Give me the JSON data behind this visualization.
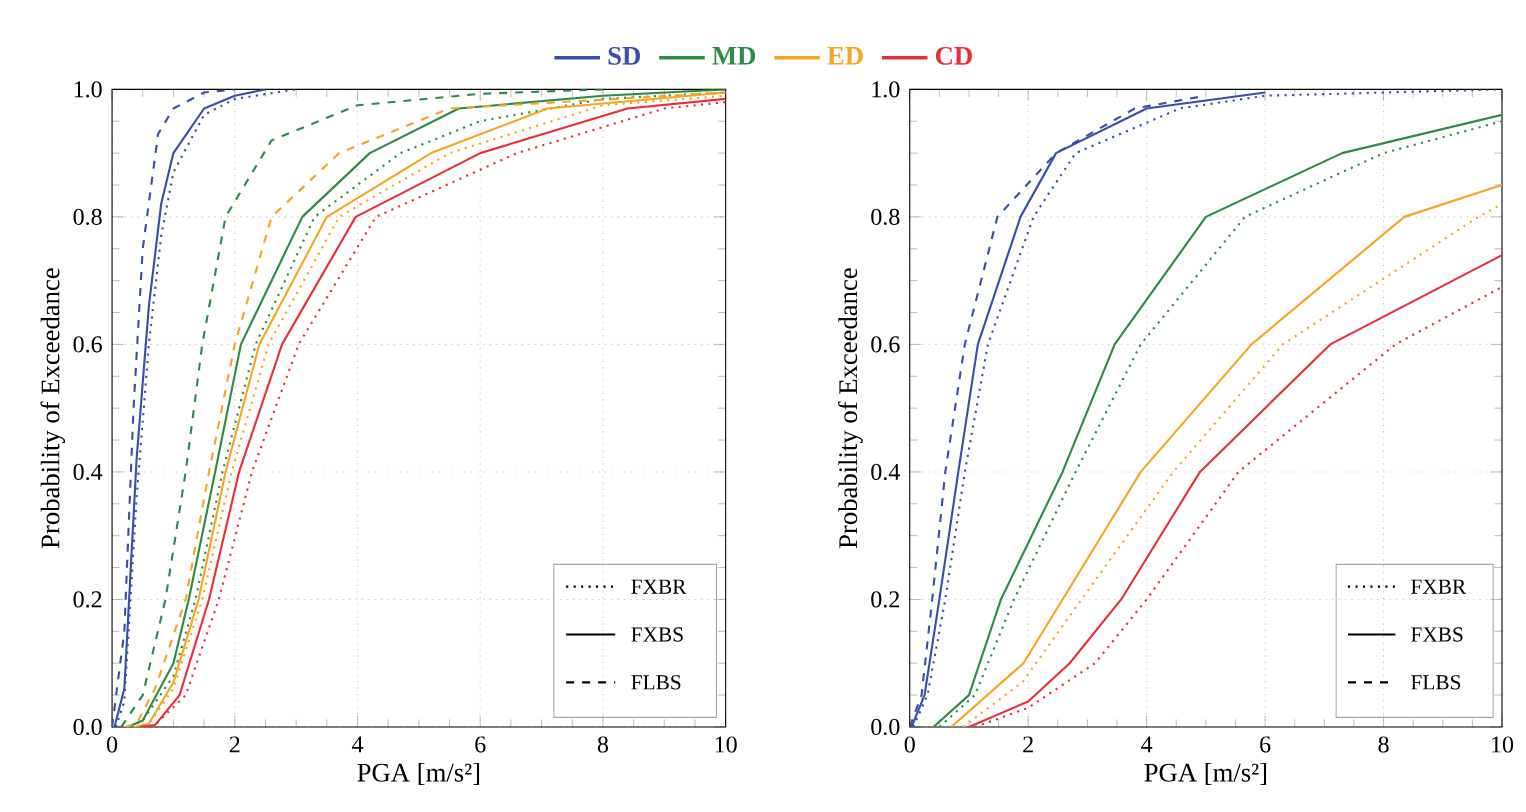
{
  "chart_data": [
    {
      "type": "line",
      "xlabel": "PGA [m/s²]",
      "ylabel": "Probability of Exceedance",
      "xlim": [
        0,
        10
      ],
      "ylim": [
        0,
        1
      ],
      "xticks": [
        0,
        2,
        4,
        6,
        8,
        10
      ],
      "yticks": [
        {
          "value": 0,
          "label": "0.0"
        },
        {
          "value": 0.2,
          "label": "0.2"
        },
        {
          "value": 0.4,
          "label": "0.4"
        },
        {
          "value": 0.6,
          "label": "0.6"
        },
        {
          "value": 0.8,
          "label": "0.8"
        },
        {
          "value": 1,
          "label": "1.0"
        }
      ],
      "grid": true,
      "legend": "top",
      "annotations": [
        "FXBR",
        "FXBS",
        "FLBS"
      ],
      "series": [
        {
          "color": "#3a4fa8",
          "line_style": "dotted",
          "x": [
            0.06,
            0.2,
            0.4,
            0.6,
            0.8,
            1,
            1.5,
            2,
            3
          ],
          "values": [
            0,
            0.04,
            0.36,
            0.6,
            0.77,
            0.87,
            0.96,
            0.985,
            1
          ]
        },
        {
          "name": "SD",
          "color": "#3a4fa8",
          "line_style": "solid",
          "x": [
            0.04,
            0.2,
            0.4,
            0.6,
            0.8,
            1,
            1.5,
            2,
            2.5
          ],
          "values": [
            0,
            0.06,
            0.42,
            0.66,
            0.82,
            0.9,
            0.97,
            0.99,
            1
          ]
        },
        {
          "color": "#3a4fa8",
          "line_style": "dashed",
          "x": [
            0,
            0.2,
            0.35,
            0.5,
            0.75,
            1,
            1.5,
            2
          ],
          "values": [
            0,
            0.15,
            0.5,
            0.75,
            0.93,
            0.97,
            0.995,
            1
          ]
        },
        {
          "color": "#2e8b4a",
          "line_style": "dotted",
          "x": [
            0.3,
            0.5,
            1,
            1.36,
            1.8,
            2.34,
            3.3,
            4.7,
            6,
            8,
            10
          ],
          "values": [
            0,
            0.01,
            0.08,
            0.2,
            0.4,
            0.6,
            0.8,
            0.9,
            0.95,
            0.985,
            0.995
          ]
        },
        {
          "name": "MD",
          "color": "#2e8b4a",
          "line_style": "solid",
          "x": [
            0.25,
            0.5,
            1,
            1.25,
            1.68,
            2.1,
            3.1,
            4.2,
            5.65,
            8,
            10
          ],
          "values": [
            0,
            0.01,
            0.1,
            0.2,
            0.4,
            0.6,
            0.8,
            0.9,
            0.97,
            0.99,
            1
          ]
        },
        {
          "color": "#2e8b4a",
          "line_style": "dashed",
          "x": [
            0.15,
            0.5,
            0.87,
            1.2,
            1.47,
            1.85,
            2.6,
            4,
            6,
            8
          ],
          "values": [
            0,
            0.05,
            0.2,
            0.4,
            0.6,
            0.8,
            0.92,
            0.975,
            0.993,
            1
          ]
        },
        {
          "color": "#f5a623",
          "line_style": "dotted",
          "x": [
            0.4,
            0.6,
            1,
            1.47,
            1.95,
            2.55,
            3.7,
            5.5,
            8,
            10
          ],
          "values": [
            0,
            0.005,
            0.06,
            0.2,
            0.4,
            0.6,
            0.8,
            0.9,
            0.975,
            0.99
          ]
        },
        {
          "name": "ED",
          "color": "#f5a623",
          "line_style": "solid",
          "x": [
            0.35,
            0.6,
            1,
            1.41,
            1.85,
            2.4,
            3.5,
            5.2,
            7.1,
            10
          ],
          "values": [
            0,
            0.005,
            0.07,
            0.2,
            0.4,
            0.6,
            0.8,
            0.9,
            0.97,
            0.995
          ]
        },
        {
          "color": "#f5a623",
          "line_style": "dashed",
          "x": [
            0.2,
            0.4,
            0.7,
            1.2,
            1.58,
            2,
            2.6,
            3.7,
            5.5,
            10
          ],
          "values": [
            0,
            0.005,
            0.06,
            0.2,
            0.4,
            0.6,
            0.8,
            0.9,
            0.97,
            0.995
          ]
        },
        {
          "color": "#e8303a",
          "line_style": "dotted",
          "x": [
            0.5,
            0.7,
            1.2,
            1.74,
            2.28,
            3.04,
            4.3,
            6.6,
            9,
            10
          ],
          "values": [
            0,
            0.003,
            0.05,
            0.2,
            0.4,
            0.6,
            0.8,
            0.9,
            0.97,
            0.98
          ]
        },
        {
          "name": "CD",
          "color": "#e8303a",
          "line_style": "solid",
          "x": [
            0.45,
            0.7,
            1.1,
            1.58,
            2.07,
            2.77,
            3.97,
            6,
            8.4,
            10
          ],
          "values": [
            0,
            0.003,
            0.05,
            0.2,
            0.4,
            0.6,
            0.8,
            0.9,
            0.97,
            0.985
          ]
        }
      ]
    },
    {
      "type": "line",
      "xlabel": "PGA [m/s²]",
      "ylabel": "Probability of Exceedance",
      "xlim": [
        0,
        10
      ],
      "ylim": [
        0,
        1
      ],
      "xticks": [
        0,
        2,
        4,
        6,
        8,
        10
      ],
      "yticks": [
        {
          "value": 0,
          "label": "0.0"
        },
        {
          "value": 0.2,
          "label": "0.2"
        },
        {
          "value": 0.4,
          "label": "0.4"
        },
        {
          "value": 0.6,
          "label": "0.6"
        },
        {
          "value": 0.8,
          "label": "0.8"
        },
        {
          "value": 1,
          "label": "1.0"
        }
      ],
      "grid": true,
      "annotations": [
        "FXBR",
        "FXBS",
        "FLBS"
      ],
      "series": [
        {
          "color": "#3a4fa8",
          "line_style": "dotted",
          "x": [
            0.06,
            0.3,
            0.6,
            0.93,
            1.32,
            2.09,
            2.8,
            4.56,
            6,
            10
          ],
          "values": [
            0,
            0.05,
            0.2,
            0.4,
            0.6,
            0.8,
            0.9,
            0.97,
            0.99,
            1
          ]
        },
        {
          "color": "#3a4fa8",
          "line_style": "solid",
          "x": [
            0.03,
            0.25,
            0.5,
            0.82,
            1.15,
            1.87,
            2.47,
            4,
            6
          ],
          "values": [
            0,
            0.05,
            0.2,
            0.4,
            0.6,
            0.8,
            0.9,
            0.97,
            0.995
          ]
        },
        {
          "color": "#3a4fa8",
          "line_style": "dashed",
          "x": [
            0,
            0.2,
            0.38,
            0.6,
            0.93,
            1.48,
            2.47,
            3.8,
            5
          ],
          "values": [
            0,
            0.05,
            0.2,
            0.4,
            0.6,
            0.8,
            0.9,
            0.97,
            0.99
          ]
        },
        {
          "color": "#2e8b4a",
          "line_style": "dotted",
          "x": [
            0.5,
            1.1,
            1.76,
            2.8,
            3.9,
            5.66,
            8,
            10
          ],
          "values": [
            0,
            0.05,
            0.2,
            0.4,
            0.6,
            0.8,
            0.9,
            0.95
          ]
        },
        {
          "color": "#2e8b4a",
          "line_style": "solid",
          "x": [
            0.4,
            1,
            1.54,
            2.58,
            3.46,
            5,
            7.3,
            10
          ],
          "values": [
            0,
            0.05,
            0.2,
            0.4,
            0.6,
            0.8,
            0.9,
            0.96
          ]
        },
        {
          "color": "#f5a623",
          "line_style": "dotted",
          "x": [
            0.9,
            1.9,
            2.9,
            4.45,
            6.3,
            9.6,
            10
          ],
          "values": [
            0,
            0.07,
            0.2,
            0.4,
            0.6,
            0.8,
            0.82
          ]
        },
        {
          "color": "#f5a623",
          "line_style": "solid",
          "x": [
            0.7,
            1.92,
            2.58,
            3.9,
            5.77,
            8.35,
            10
          ],
          "values": [
            0,
            0.1,
            0.2,
            0.4,
            0.6,
            0.8,
            0.85
          ]
        },
        {
          "color": "#e8303a",
          "line_style": "dotted",
          "x": [
            1.1,
            2,
            3.13,
            4,
            5.55,
            8.2,
            10
          ],
          "values": [
            0,
            0.03,
            0.1,
            0.2,
            0.4,
            0.6,
            0.69
          ]
        },
        {
          "color": "#e8303a",
          "line_style": "solid",
          "x": [
            1,
            2,
            2.7,
            3.57,
            4.9,
            7.1,
            10
          ],
          "values": [
            0,
            0.04,
            0.1,
            0.2,
            0.4,
            0.6,
            0.74
          ]
        }
      ]
    }
  ]
}
